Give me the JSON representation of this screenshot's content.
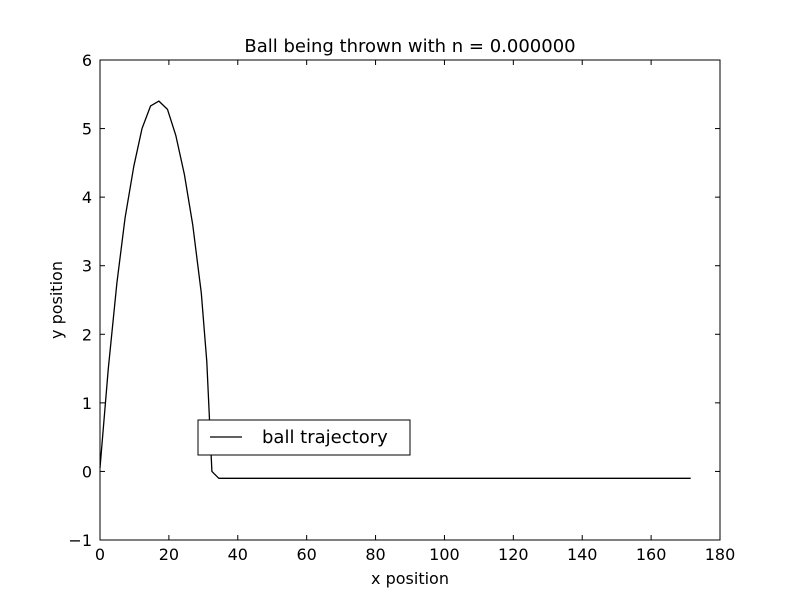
{
  "chart_data": {
    "type": "line",
    "title": "Ball being thrown with n = 0.000000",
    "xlabel": "x position",
    "ylabel": "y position",
    "xlim": [
      0,
      180
    ],
    "ylim": [
      -1,
      6
    ],
    "xticks": [
      0,
      20,
      40,
      60,
      80,
      100,
      120,
      140,
      160,
      180
    ],
    "yticks": [
      -1,
      0,
      1,
      2,
      3,
      4,
      5,
      6
    ],
    "xtick_labels": [
      "0",
      "20",
      "40",
      "60",
      "80",
      "100",
      "120",
      "140",
      "160",
      "180"
    ],
    "ytick_labels": [
      "−1",
      "0",
      "1",
      "2",
      "3",
      "4",
      "5",
      "6"
    ],
    "grid": false,
    "legend_position": "lower-left-center",
    "series": [
      {
        "name": "ball trajectory",
        "color": "#000000",
        "x": [
          0,
          2.4,
          4.9,
          7.3,
          9.8,
          12.2,
          14.7,
          17.1,
          19.6,
          22.0,
          24.5,
          26.9,
          29.4,
          31.0,
          32.5,
          34.5,
          171.5
        ],
        "y": [
          0.05,
          1.5,
          2.75,
          3.7,
          4.45,
          5.0,
          5.33,
          5.4,
          5.28,
          4.9,
          4.33,
          3.6,
          2.6,
          1.6,
          0.0,
          -0.1,
          -0.1
        ]
      }
    ]
  }
}
